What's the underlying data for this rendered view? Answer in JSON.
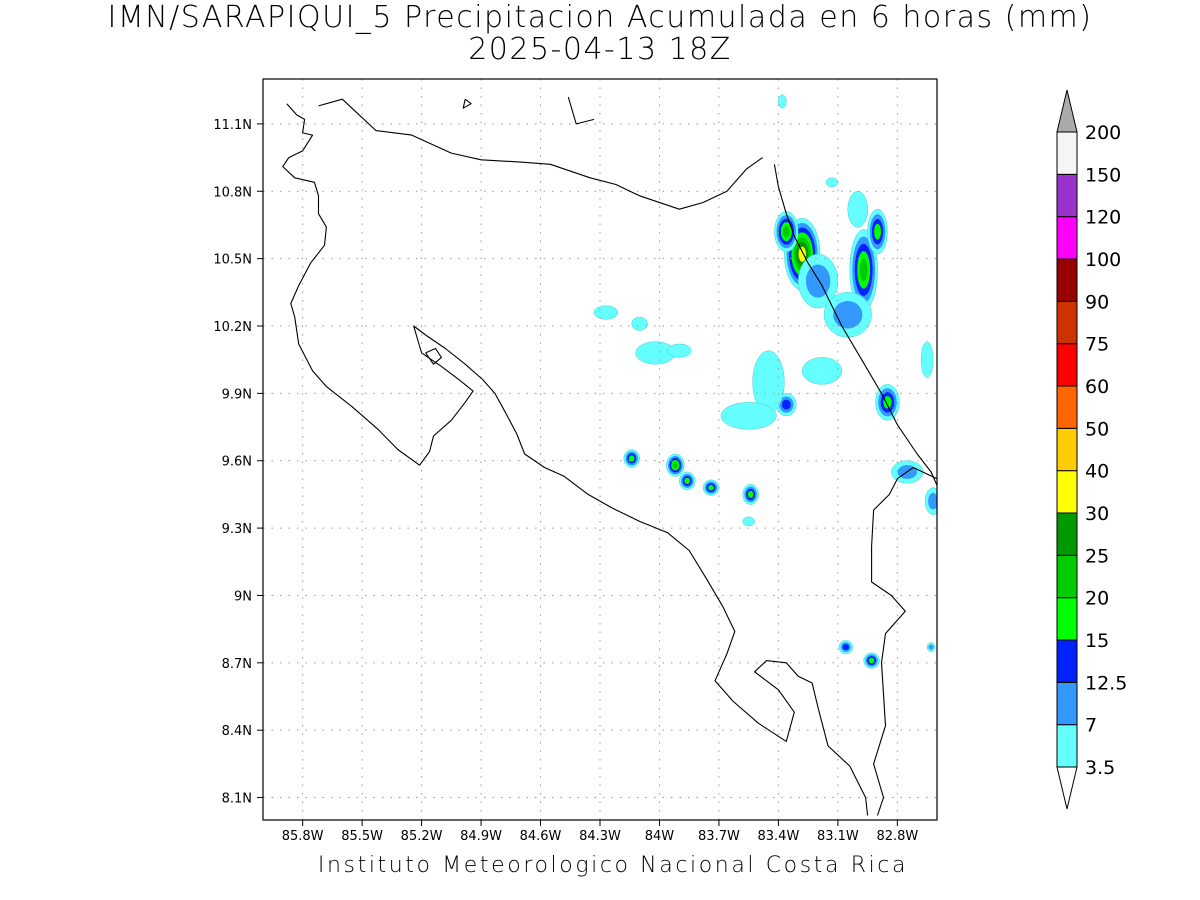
{
  "title": {
    "line1": "IMN/SARAPIQUI_5 Precipitacion Acumulada en 6 horas (mm)",
    "line2": "2025-04-13 18Z"
  },
  "footer": "Instituto Meteorologico Nacional Costa Rica",
  "map": {
    "lon_range": [
      -86.0,
      -82.6
    ],
    "lat_range": [
      8.0,
      11.3
    ],
    "lon_ticks": [
      {
        "value": -85.8,
        "label": "85.8W"
      },
      {
        "value": -85.5,
        "label": "85.5W"
      },
      {
        "value": -85.2,
        "label": "85.2W"
      },
      {
        "value": -84.9,
        "label": "84.9W"
      },
      {
        "value": -84.6,
        "label": "84.6W"
      },
      {
        "value": -84.3,
        "label": "84.3W"
      },
      {
        "value": -84.0,
        "label": "84W"
      },
      {
        "value": -83.7,
        "label": "83.7W"
      },
      {
        "value": -83.4,
        "label": "83.4W"
      },
      {
        "value": -83.1,
        "label": "83.1W"
      },
      {
        "value": -82.8,
        "label": "82.8W"
      }
    ],
    "lat_ticks": [
      {
        "value": 8.1,
        "label": "8.1N"
      },
      {
        "value": 8.4,
        "label": "8.4N"
      },
      {
        "value": 8.7,
        "label": "8.7N"
      },
      {
        "value": 9.0,
        "label": "9N"
      },
      {
        "value": 9.3,
        "label": "9.3N"
      },
      {
        "value": 9.6,
        "label": "9.6N"
      },
      {
        "value": 9.9,
        "label": "9.9N"
      },
      {
        "value": 10.2,
        "label": "10.2N"
      },
      {
        "value": 10.5,
        "label": "10.5N"
      },
      {
        "value": 10.8,
        "label": "10.8N"
      },
      {
        "value": 11.1,
        "label": "11.1N"
      }
    ],
    "grid": true,
    "coastline": [
      [
        [
          -85.88,
          11.19
        ],
        [
          -85.83,
          11.14
        ],
        [
          -85.79,
          11.12
        ],
        [
          -85.8,
          11.06
        ],
        [
          -85.75,
          11.05
        ],
        [
          -85.8,
          10.98
        ],
        [
          -85.87,
          10.95
        ],
        [
          -85.9,
          10.91
        ],
        [
          -85.84,
          10.86
        ],
        [
          -85.74,
          10.84
        ],
        [
          -85.72,
          10.78
        ],
        [
          -85.72,
          10.7
        ],
        [
          -85.68,
          10.64
        ],
        [
          -85.69,
          10.56
        ],
        [
          -85.76,
          10.48
        ],
        [
          -85.82,
          10.38
        ],
        [
          -85.86,
          10.3
        ],
        [
          -85.84,
          10.24
        ],
        [
          -85.82,
          10.12
        ],
        [
          -85.75,
          10.0
        ],
        [
          -85.68,
          9.93
        ],
        [
          -85.55,
          9.84
        ],
        [
          -85.42,
          9.74
        ],
        [
          -85.32,
          9.65
        ],
        [
          -85.21,
          9.58
        ],
        [
          -85.16,
          9.64
        ],
        [
          -85.14,
          9.71
        ],
        [
          -85.05,
          9.78
        ],
        [
          -84.98,
          9.86
        ],
        [
          -84.94,
          9.91
        ],
        [
          -85.01,
          9.96
        ],
        [
          -85.1,
          10.02
        ],
        [
          -85.2,
          10.08
        ],
        [
          -85.22,
          10.14
        ],
        [
          -85.24,
          10.2
        ],
        [
          -85.18,
          10.16
        ],
        [
          -85.08,
          10.1
        ],
        [
          -84.98,
          10.03
        ],
        [
          -84.89,
          9.96
        ],
        [
          -84.83,
          9.9
        ],
        [
          -84.78,
          9.82
        ],
        [
          -84.72,
          9.72
        ],
        [
          -84.68,
          9.63
        ],
        [
          -84.58,
          9.57
        ],
        [
          -84.48,
          9.53
        ],
        [
          -84.36,
          9.45
        ],
        [
          -84.24,
          9.39
        ],
        [
          -84.1,
          9.33
        ],
        [
          -83.96,
          9.28
        ],
        [
          -83.85,
          9.2
        ],
        [
          -83.76,
          9.07
        ],
        [
          -83.68,
          8.95
        ],
        [
          -83.62,
          8.84
        ],
        [
          -83.66,
          8.74
        ],
        [
          -83.72,
          8.62
        ],
        [
          -83.63,
          8.53
        ],
        [
          -83.5,
          8.43
        ],
        [
          -83.36,
          8.35
        ],
        [
          -83.32,
          8.48
        ],
        [
          -83.4,
          8.58
        ],
        [
          -83.52,
          8.66
        ],
        [
          -83.46,
          8.71
        ],
        [
          -83.36,
          8.7
        ],
        [
          -83.3,
          8.64
        ],
        [
          -83.23,
          8.61
        ],
        [
          -83.2,
          8.5
        ],
        [
          -83.15,
          8.33
        ],
        [
          -83.04,
          8.24
        ],
        [
          -82.96,
          8.1
        ],
        [
          -82.95,
          8.02
        ]
      ],
      [
        [
          -83.42,
          10.92
        ],
        [
          -83.4,
          10.82
        ],
        [
          -83.36,
          10.7
        ],
        [
          -83.32,
          10.6
        ],
        [
          -83.25,
          10.48
        ],
        [
          -83.18,
          10.38
        ],
        [
          -83.08,
          10.2
        ],
        [
          -82.98,
          10.05
        ],
        [
          -82.88,
          9.9
        ],
        [
          -82.8,
          9.76
        ],
        [
          -82.7,
          9.63
        ],
        [
          -82.63,
          9.55
        ],
        [
          -82.6,
          9.49
        ]
      ]
    ],
    "borders": [
      [
        [
          -85.72,
          11.18
        ],
        [
          -85.6,
          11.21
        ],
        [
          -85.43,
          11.07
        ],
        [
          -85.25,
          11.05
        ],
        [
          -85.05,
          10.97
        ],
        [
          -84.9,
          10.94
        ],
        [
          -84.7,
          10.93
        ],
        [
          -84.55,
          10.92
        ],
        [
          -84.35,
          10.86
        ],
        [
          -84.22,
          10.83
        ],
        [
          -84.1,
          10.78
        ],
        [
          -83.9,
          10.72
        ],
        [
          -83.78,
          10.75
        ],
        [
          -83.66,
          10.8
        ],
        [
          -83.56,
          10.9
        ],
        [
          -83.48,
          10.95
        ]
      ],
      [
        [
          -82.6,
          9.52
        ],
        [
          -82.72,
          9.57
        ],
        [
          -82.8,
          9.52
        ],
        [
          -82.84,
          9.45
        ],
        [
          -82.92,
          9.38
        ],
        [
          -82.93,
          9.22
        ],
        [
          -82.93,
          9.06
        ],
        [
          -82.83,
          9.0
        ],
        [
          -82.76,
          8.93
        ],
        [
          -82.86,
          8.83
        ],
        [
          -82.88,
          8.7
        ],
        [
          -82.87,
          8.56
        ],
        [
          -82.86,
          8.42
        ],
        [
          -82.92,
          8.25
        ],
        [
          -82.87,
          8.1
        ],
        [
          -82.9,
          8.02
        ]
      ],
      [
        [
          -84.46,
          11.22
        ],
        [
          -84.42,
          11.1
        ],
        [
          -84.33,
          11.12
        ]
      ]
    ],
    "lakes": [
      [
        [
          -85.18,
          10.08
        ],
        [
          -85.13,
          10.1
        ],
        [
          -85.1,
          10.06
        ],
        [
          -85.14,
          10.03
        ],
        [
          -85.18,
          10.08
        ]
      ],
      [
        [
          -84.98,
          11.21
        ],
        [
          -84.95,
          11.19
        ],
        [
          -84.99,
          11.17
        ],
        [
          -84.98,
          11.21
        ]
      ]
    ]
  },
  "precipitation": [
    {
      "lon": -83.28,
      "lat": 10.52,
      "rx": 0.09,
      "ry": 0.16,
      "level": 7
    },
    {
      "lon": -83.36,
      "lat": 10.62,
      "rx": 0.06,
      "ry": 0.09,
      "level": 5
    },
    {
      "lon": -82.97,
      "lat": 10.45,
      "rx": 0.07,
      "ry": 0.18,
      "level": 5
    },
    {
      "lon": -82.9,
      "lat": 10.62,
      "rx": 0.05,
      "ry": 0.1,
      "level": 4
    },
    {
      "lon": -83.2,
      "lat": 10.4,
      "rx": 0.1,
      "ry": 0.12,
      "level": 2
    },
    {
      "lon": -83.05,
      "lat": 10.25,
      "rx": 0.12,
      "ry": 0.1,
      "level": 2
    },
    {
      "lon": -82.85,
      "lat": 9.86,
      "rx": 0.06,
      "ry": 0.08,
      "level": 4
    },
    {
      "lon": -82.75,
      "lat": 9.55,
      "rx": 0.08,
      "ry": 0.05,
      "level": 2
    },
    {
      "lon": -82.62,
      "lat": 9.42,
      "rx": 0.04,
      "ry": 0.06,
      "level": 2
    },
    {
      "lon": -83.36,
      "lat": 9.85,
      "rx": 0.05,
      "ry": 0.05,
      "level": 3
    },
    {
      "lon": -83.45,
      "lat": 9.95,
      "rx": 0.08,
      "ry": 0.14,
      "level": 1
    },
    {
      "lon": -83.55,
      "lat": 9.8,
      "rx": 0.14,
      "ry": 0.06,
      "level": 1
    },
    {
      "lon": -83.18,
      "lat": 10.0,
      "rx": 0.1,
      "ry": 0.06,
      "level": 1
    },
    {
      "lon": -84.14,
      "lat": 9.61,
      "rx": 0.04,
      "ry": 0.04,
      "level": 4
    },
    {
      "lon": -83.92,
      "lat": 9.58,
      "rx": 0.045,
      "ry": 0.05,
      "level": 5
    },
    {
      "lon": -83.86,
      "lat": 9.51,
      "rx": 0.04,
      "ry": 0.04,
      "level": 4
    },
    {
      "lon": -83.74,
      "lat": 9.48,
      "rx": 0.04,
      "ry": 0.035,
      "level": 4
    },
    {
      "lon": -83.54,
      "lat": 9.45,
      "rx": 0.04,
      "ry": 0.045,
      "level": 4
    },
    {
      "lon": -83.06,
      "lat": 8.77,
      "rx": 0.035,
      "ry": 0.03,
      "level": 3
    },
    {
      "lon": -82.93,
      "lat": 8.71,
      "rx": 0.04,
      "ry": 0.035,
      "level": 4
    },
    {
      "lon": -84.02,
      "lat": 10.08,
      "rx": 0.1,
      "ry": 0.05,
      "level": 1
    },
    {
      "lon": -84.27,
      "lat": 10.26,
      "rx": 0.06,
      "ry": 0.03,
      "level": 1
    },
    {
      "lon": -84.1,
      "lat": 10.21,
      "rx": 0.04,
      "ry": 0.03,
      "level": 1
    },
    {
      "lon": -83.9,
      "lat": 10.09,
      "rx": 0.06,
      "ry": 0.03,
      "level": 1
    },
    {
      "lon": -83.38,
      "lat": 11.2,
      "rx": 0.02,
      "ry": 0.03,
      "level": 1
    },
    {
      "lon": -83.13,
      "lat": 10.84,
      "rx": 0.03,
      "ry": 0.02,
      "level": 1
    },
    {
      "lon": -82.65,
      "lat": 10.05,
      "rx": 0.03,
      "ry": 0.08,
      "level": 1
    },
    {
      "lon": -82.63,
      "lat": 8.77,
      "rx": 0.02,
      "ry": 0.02,
      "level": 2
    },
    {
      "lon": -83.55,
      "lat": 9.33,
      "rx": 0.03,
      "ry": 0.02,
      "level": 1
    },
    {
      "lon": -83.0,
      "lat": 10.72,
      "rx": 0.05,
      "ry": 0.08,
      "level": 1
    }
  ],
  "colorbar": {
    "labels": [
      "3.5",
      "7",
      "12.5",
      "15",
      "20",
      "25",
      "30",
      "40",
      "50",
      "60",
      "75",
      "90",
      "100",
      "120",
      "150",
      "200"
    ],
    "colors": [
      "#66ffff",
      "#3399ff",
      "#0022ff",
      "#00ff00",
      "#00cc00",
      "#009900",
      "#ffff00",
      "#ffcc00",
      "#ff6600",
      "#ff0000",
      "#cc3300",
      "#990000",
      "#ff00ff",
      "#9933cc",
      "#f5f5f5"
    ],
    "above_color": "#aaaaaa",
    "below_color": "#ffffff"
  }
}
